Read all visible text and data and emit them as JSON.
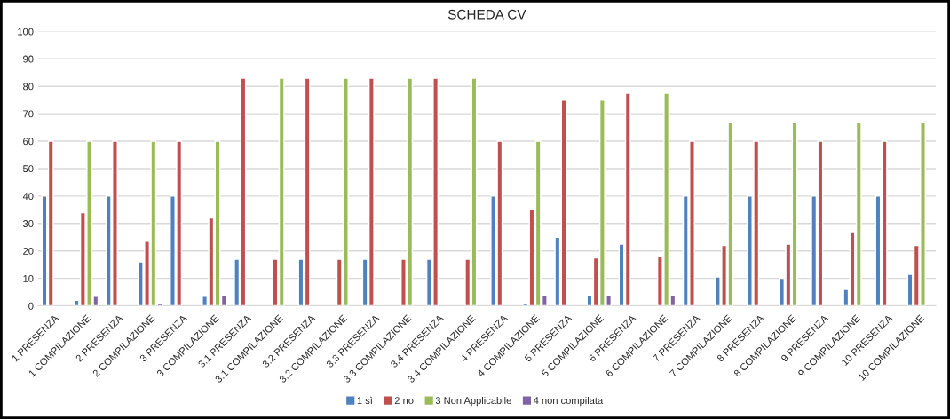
{
  "chart_data": {
    "type": "bar",
    "title": "SCHEDA CV",
    "categories": [
      "1 PRESENZA",
      "1 COMPILAZIONE",
      "2 PRESENZA",
      "2 COMPILAZIONE",
      "3 PRESENZA",
      "3 COMPILAZIONE",
      "3.1 PRESENZA",
      "3.1 COMPILAZIONE",
      "3.2 PRESENZA",
      "3.2 COMPILAZIONE",
      "3.3 PRESENZA",
      "3.3 COMPILAZIONE",
      "3.4 PRESENZA",
      "3.4 COMPILAZIONE",
      "4 PRESENZA",
      "4 COMPILAZIONE",
      "5 PRESENZA",
      "5 COMPILAZIONE",
      "6 PRESENZA",
      "6 COMPILAZIONE",
      "7 PRESENZA",
      "7 COMPILAZIONE",
      "8 PRESENZA",
      "8 COMPILAZIONE",
      "9 PRESENZA",
      "9 COMPILAZIONE",
      "10 PRESENZA",
      "10 COMPILAZIONE"
    ],
    "series": [
      {
        "name": "1 sì",
        "color": "#4f81bd",
        "values": [
          40,
          2,
          40,
          16,
          40,
          3.5,
          17,
          null,
          17,
          null,
          17,
          null,
          17,
          null,
          40,
          1,
          25,
          4,
          22.5,
          null,
          40,
          10.5,
          40,
          10,
          40,
          6,
          40,
          11.5
        ]
      },
      {
        "name": "2 no",
        "color": "#c0504d",
        "values": [
          60,
          34,
          60,
          23.5,
          60,
          32,
          83,
          17,
          83,
          17,
          83,
          17,
          83,
          17,
          60,
          35,
          75,
          17.5,
          77.5,
          18,
          60,
          22,
          60,
          22.5,
          60,
          27,
          60,
          22
        ]
      },
      {
        "name": "3 Non Applicabile",
        "color": "#9bbb59",
        "values": [
          null,
          60,
          null,
          60,
          null,
          60,
          null,
          83,
          null,
          83,
          null,
          83,
          null,
          83,
          null,
          60,
          null,
          75,
          null,
          77.5,
          null,
          67,
          null,
          67,
          null,
          67,
          null,
          67
        ]
      },
      {
        "name": "4 non compilata",
        "color": "#8064a2",
        "values": [
          null,
          3.5,
          null,
          0.7,
          null,
          4,
          null,
          null,
          null,
          null,
          null,
          null,
          null,
          null,
          null,
          4,
          null,
          4,
          null,
          4,
          null,
          null,
          null,
          null,
          null,
          null,
          null,
          null
        ]
      }
    ],
    "ylim": [
      0,
      100
    ],
    "yticks": [
      0,
      10,
      20,
      30,
      40,
      50,
      60,
      70,
      80,
      90,
      100
    ],
    "grid": "y",
    "legend": "bottom"
  }
}
